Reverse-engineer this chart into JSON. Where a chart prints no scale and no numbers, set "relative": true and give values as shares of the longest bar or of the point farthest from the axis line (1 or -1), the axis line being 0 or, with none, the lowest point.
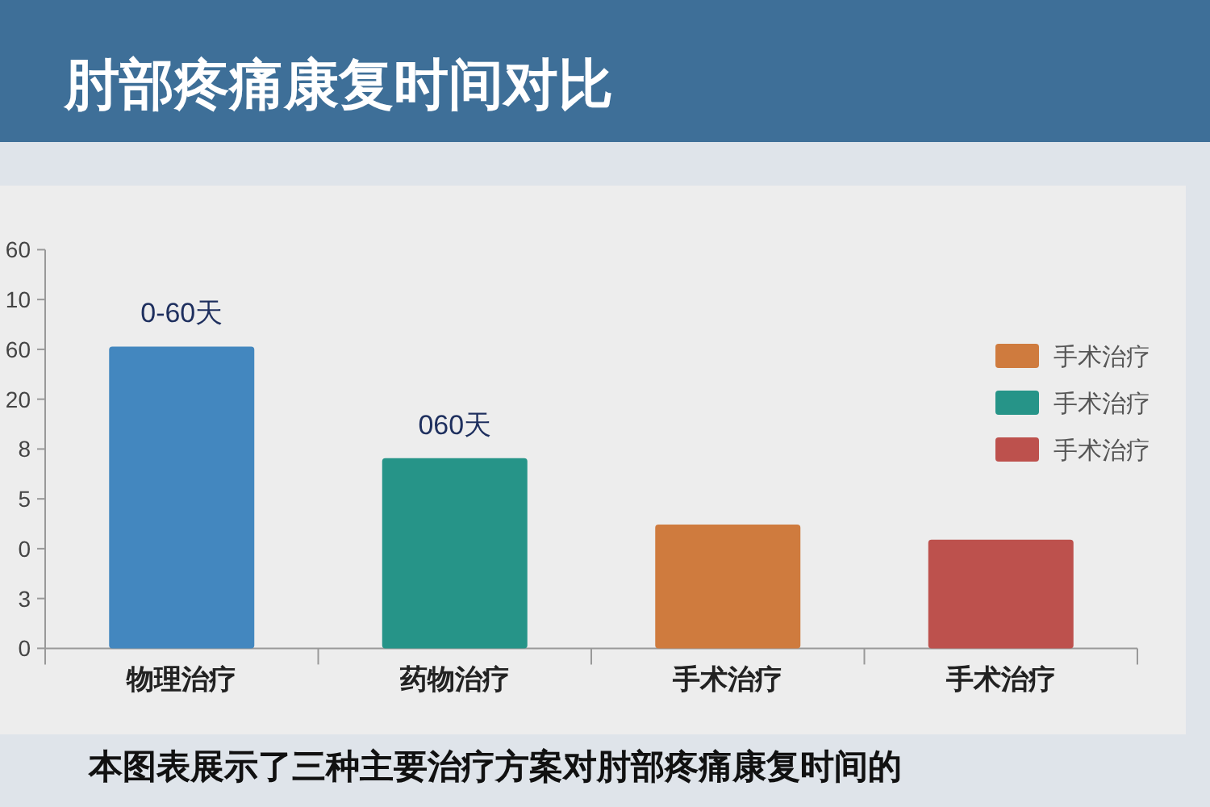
{
  "chart_data": {
    "type": "bar",
    "title": "肘部疼痛康复时间对比",
    "relative": true,
    "categories": [
      "物理治疗",
      "药物治疗",
      "手术治疗",
      "手术治疗"
    ],
    "series": [
      {
        "name": "手术治疗",
        "color": "#cf7b3e",
        "values": [
          null,
          null,
          0.41,
          null
        ]
      },
      {
        "name": "手术治疗",
        "color": "#269488",
        "values": [
          null,
          0.63,
          null,
          null
        ]
      },
      {
        "name": "手术治疗",
        "color": "#bd514d",
        "values": [
          null,
          null,
          null,
          0.36
        ]
      },
      {
        "color": "#4387bf",
        "values": [
          1,
          null,
          null,
          null
        ]
      }
    ],
    "legend": "top right",
    "annotations": [
      {
        "text": "0-60天",
        "x": "物理治疗",
        "y": 1
      },
      {
        "text": "060天",
        "x": "药物治疗",
        "y": 0.63
      },
      "60",
      "10",
      "60",
      "20",
      "8",
      "5",
      "0",
      "3",
      "0",
      "本图表展示了三种主要治疗方案对肘部疼痛康复时间的"
    ]
  }
}
